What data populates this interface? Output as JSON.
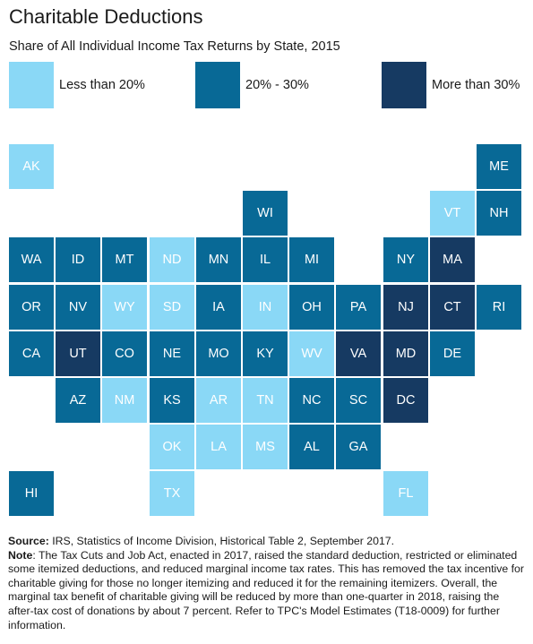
{
  "colors": {
    "low": "#8ad8f6",
    "mid": "#086996",
    "high": "#163a62"
  },
  "chart_data": {
    "type": "tile-map",
    "title": "Charitable Deductions",
    "subtitle": "Share of All Individual Income Tax Returns by State, 2015",
    "legend": [
      {
        "key": "low",
        "label": "Less than 20%"
      },
      {
        "key": "mid",
        "label": "20% - 30%"
      },
      {
        "key": "high",
        "label": "More than 30%"
      }
    ],
    "states": [
      {
        "abbr": "AK",
        "row": 0,
        "col": 0,
        "category": "low"
      },
      {
        "abbr": "ME",
        "row": 0,
        "col": 10,
        "category": "mid"
      },
      {
        "abbr": "WI",
        "row": 1,
        "col": 5,
        "category": "mid"
      },
      {
        "abbr": "VT",
        "row": 1,
        "col": 9,
        "category": "low"
      },
      {
        "abbr": "NH",
        "row": 1,
        "col": 10,
        "category": "mid"
      },
      {
        "abbr": "WA",
        "row": 2,
        "col": 0,
        "category": "mid"
      },
      {
        "abbr": "ID",
        "row": 2,
        "col": 1,
        "category": "mid"
      },
      {
        "abbr": "MT",
        "row": 2,
        "col": 2,
        "category": "mid"
      },
      {
        "abbr": "ND",
        "row": 2,
        "col": 3,
        "category": "low"
      },
      {
        "abbr": "MN",
        "row": 2,
        "col": 4,
        "category": "mid"
      },
      {
        "abbr": "IL",
        "row": 2,
        "col": 5,
        "category": "mid"
      },
      {
        "abbr": "MI",
        "row": 2,
        "col": 6,
        "category": "mid"
      },
      {
        "abbr": "NY",
        "row": 2,
        "col": 8,
        "category": "mid"
      },
      {
        "abbr": "MA",
        "row": 2,
        "col": 9,
        "category": "high"
      },
      {
        "abbr": "OR",
        "row": 3,
        "col": 0,
        "category": "mid"
      },
      {
        "abbr": "NV",
        "row": 3,
        "col": 1,
        "category": "mid"
      },
      {
        "abbr": "WY",
        "row": 3,
        "col": 2,
        "category": "low"
      },
      {
        "abbr": "SD",
        "row": 3,
        "col": 3,
        "category": "low"
      },
      {
        "abbr": "IA",
        "row": 3,
        "col": 4,
        "category": "mid"
      },
      {
        "abbr": "IN",
        "row": 3,
        "col": 5,
        "category": "low"
      },
      {
        "abbr": "OH",
        "row": 3,
        "col": 6,
        "category": "mid"
      },
      {
        "abbr": "PA",
        "row": 3,
        "col": 7,
        "category": "mid"
      },
      {
        "abbr": "NJ",
        "row": 3,
        "col": 8,
        "category": "high"
      },
      {
        "abbr": "CT",
        "row": 3,
        "col": 9,
        "category": "high"
      },
      {
        "abbr": "RI",
        "row": 3,
        "col": 10,
        "category": "mid"
      },
      {
        "abbr": "CA",
        "row": 4,
        "col": 0,
        "category": "mid"
      },
      {
        "abbr": "UT",
        "row": 4,
        "col": 1,
        "category": "high"
      },
      {
        "abbr": "CO",
        "row": 4,
        "col": 2,
        "category": "mid"
      },
      {
        "abbr": "NE",
        "row": 4,
        "col": 3,
        "category": "mid"
      },
      {
        "abbr": "MO",
        "row": 4,
        "col": 4,
        "category": "mid"
      },
      {
        "abbr": "KY",
        "row": 4,
        "col": 5,
        "category": "mid"
      },
      {
        "abbr": "WV",
        "row": 4,
        "col": 6,
        "category": "low"
      },
      {
        "abbr": "VA",
        "row": 4,
        "col": 7,
        "category": "high"
      },
      {
        "abbr": "MD",
        "row": 4,
        "col": 8,
        "category": "high"
      },
      {
        "abbr": "DE",
        "row": 4,
        "col": 9,
        "category": "mid"
      },
      {
        "abbr": "AZ",
        "row": 5,
        "col": 1,
        "category": "mid"
      },
      {
        "abbr": "NM",
        "row": 5,
        "col": 2,
        "category": "low"
      },
      {
        "abbr": "KS",
        "row": 5,
        "col": 3,
        "category": "mid"
      },
      {
        "abbr": "AR",
        "row": 5,
        "col": 4,
        "category": "low"
      },
      {
        "abbr": "TN",
        "row": 5,
        "col": 5,
        "category": "low"
      },
      {
        "abbr": "NC",
        "row": 5,
        "col": 6,
        "category": "mid"
      },
      {
        "abbr": "SC",
        "row": 5,
        "col": 7,
        "category": "mid"
      },
      {
        "abbr": "DC",
        "row": 5,
        "col": 8,
        "category": "high"
      },
      {
        "abbr": "OK",
        "row": 6,
        "col": 3,
        "category": "low"
      },
      {
        "abbr": "LA",
        "row": 6,
        "col": 4,
        "category": "low"
      },
      {
        "abbr": "MS",
        "row": 6,
        "col": 5,
        "category": "low"
      },
      {
        "abbr": "AL",
        "row": 6,
        "col": 6,
        "category": "mid"
      },
      {
        "abbr": "GA",
        "row": 6,
        "col": 7,
        "category": "mid"
      },
      {
        "abbr": "HI",
        "row": 7,
        "col": 0,
        "category": "mid"
      },
      {
        "abbr": "TX",
        "row": 7,
        "col": 3,
        "category": "low"
      },
      {
        "abbr": "FL",
        "row": 7,
        "col": 8,
        "category": "low"
      }
    ]
  },
  "footer": {
    "source_label": "Source:",
    "source_text": " IRS, Statistics of Income Division, Historical Table 2, September 2017.",
    "note_label": "Note",
    "note_text": ": The Tax Cuts and Job Act, enacted in 2017, raised the standard deduction, restricted or eliminated some itemized deductions, and reduced marginal income tax rates. This has removed the tax incentive for charitable giving for those no longer itemizing and reduced it for the remaining itemizers. Overall, the marginal tax benefit of charitable giving will be reduced by more than one-quarter in 2018, raising the after-tax cost of donations by about 7 percent. Refer to TPC's Model Estimates (T18-0009) for further information."
  }
}
